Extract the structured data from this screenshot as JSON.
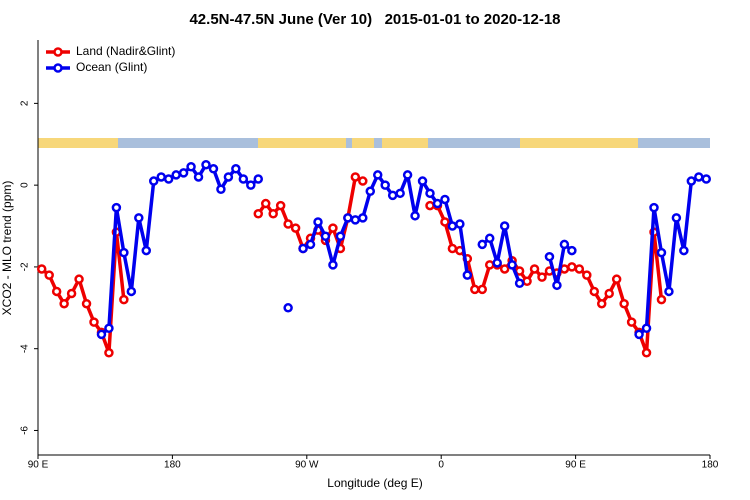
{
  "chart_data": {
    "type": "line",
    "title": "42.5N-47.5N June (Ver 10)   2015-01-01 to 2020-12-18",
    "xlabel": "Longitude (deg E)",
    "ylabel": "XCO2 - MLO trend (ppm)",
    "x": [
      92.5,
      97.5,
      102.5,
      107.5,
      112.5,
      117.5,
      122.5,
      127.5,
      132.5,
      137.5,
      142.5,
      147.5,
      152.5,
      157.5,
      162.5,
      167.5,
      172.5,
      177.5,
      182.5,
      187.5,
      192.5,
      197.5,
      202.5,
      207.5,
      212.5,
      217.5,
      222.5,
      227.5,
      232.5,
      237.5,
      242.5,
      247.5,
      252.5,
      257.5,
      262.5,
      267.5,
      272.5,
      277.5,
      282.5,
      287.5,
      292.5,
      297.5,
      302.5,
      307.5,
      312.5,
      317.5,
      322.5,
      327.5,
      332.5,
      337.5,
      342.5,
      347.5,
      352.5,
      357.5,
      362.5,
      367.5,
      372.5,
      377.5,
      382.5,
      387.5,
      392.5,
      397.5,
      402.5,
      407.5,
      412.5,
      417.5,
      422.5,
      427.5,
      432.5,
      437.5,
      442.5,
      447.5,
      452.5,
      457.5,
      462.5,
      467.5,
      472.5,
      477.5,
      482.5,
      487.5,
      492.5,
      497.5,
      502.5,
      507.5,
      512.5,
      517.5,
      522.5,
      527.5,
      532.5,
      537.5
    ],
    "series": [
      {
        "name": "Land (Nadir&Glint)",
        "color": "#ee0000",
        "values": [
          -2.05,
          -2.2,
          -2.6,
          -2.9,
          -2.65,
          -2.3,
          -2.9,
          -3.35,
          -3.6,
          -4.1,
          -1.15,
          -2.8,
          null,
          null,
          null,
          null,
          null,
          null,
          null,
          null,
          null,
          null,
          null,
          null,
          null,
          null,
          null,
          null,
          null,
          -0.7,
          -0.45,
          -0.7,
          -0.5,
          -0.95,
          -1.05,
          -1.55,
          -1.3,
          -1.1,
          -1.35,
          -1.05,
          -1.55,
          -0.8,
          0.2,
          0.1,
          null,
          null,
          null,
          null,
          null,
          null,
          null,
          null,
          -0.5,
          -0.5,
          -0.9,
          -1.55,
          -1.6,
          -1.8,
          -2.55,
          -2.55,
          -1.95,
          -1.95,
          -2.05,
          -1.85,
          -2.1,
          -2.35,
          -2.05,
          -2.25,
          -2.1,
          -2.15,
          -2.05,
          -2.0,
          -2.05,
          -2.2,
          -2.6,
          -2.9,
          -2.65,
          -2.3,
          -2.9,
          -3.35,
          -3.6,
          -4.1,
          -1.15,
          -2.8,
          null,
          null,
          null,
          null,
          null,
          null
        ]
      },
      {
        "name": "Ocean (Glint)",
        "color": "#0000ee",
        "values": [
          null,
          null,
          null,
          null,
          null,
          null,
          null,
          null,
          -3.65,
          -3.5,
          -0.55,
          -1.65,
          -2.6,
          -0.8,
          -1.6,
          0.1,
          0.2,
          0.15,
          0.25,
          0.3,
          0.45,
          0.2,
          0.5,
          0.4,
          -0.1,
          0.2,
          0.4,
          0.15,
          0.0,
          0.15,
          null,
          null,
          null,
          -3.0,
          null,
          -1.55,
          -1.45,
          -0.9,
          -1.25,
          -1.95,
          -1.25,
          -0.8,
          -0.85,
          -0.8,
          -0.15,
          0.25,
          0.0,
          -0.25,
          -0.2,
          0.25,
          -0.75,
          0.1,
          -0.2,
          -0.45,
          -0.35,
          -1.0,
          -0.95,
          -2.2,
          null,
          -1.45,
          -1.3,
          -1.9,
          -1.0,
          -1.95,
          -2.4,
          null,
          null,
          null,
          -1.75,
          -2.45,
          -1.45,
          -1.6,
          null,
          null,
          null,
          null,
          null,
          null,
          null,
          null,
          -3.65,
          -3.5,
          -0.55,
          -1.65,
          -2.6,
          -0.8,
          -1.6,
          0.1,
          0.2,
          0.15
        ]
      }
    ],
    "xlim": [
      90,
      540
    ],
    "xticks": [
      {
        "value": 90,
        "label": "90 E"
      },
      180,
      {
        "value": 270,
        "label": "90 W"
      },
      {
        "value": 360,
        "label": "0"
      },
      {
        "value": 450,
        "label": "90 E"
      },
      {
        "value": 540,
        "label": "180"
      }
    ],
    "ylim": [
      -6.6,
      3.55
    ],
    "yticks": [
      2,
      0,
      -2,
      -4,
      -6
    ],
    "legend": "top-left",
    "grid": false
  }
}
